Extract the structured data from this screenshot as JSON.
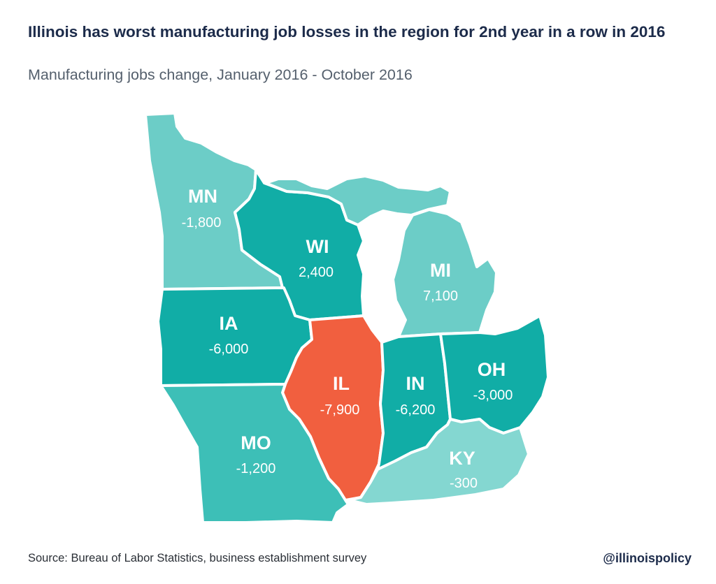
{
  "header": {
    "title": "Illinois has worst manufacturing job losses in the region for 2nd year in a row in 2016",
    "subtitle": "Manufacturing jobs change, January 2016 - October 2016"
  },
  "states": {
    "MN": {
      "abbr": "MN",
      "value": "-1,800",
      "color": "#6ccdc7"
    },
    "WI": {
      "abbr": "WI",
      "value": "2,400",
      "color": "#11ada6"
    },
    "MI": {
      "abbr": "MI",
      "value": "7,100",
      "color": "#6ccdc7"
    },
    "IA": {
      "abbr": "IA",
      "value": "-6,000",
      "color": "#11ada6"
    },
    "IL": {
      "abbr": "IL",
      "value": "-7,900",
      "color": "#f15f3f"
    },
    "IN": {
      "abbr": "IN",
      "value": "-6,200",
      "color": "#11ada6"
    },
    "OH": {
      "abbr": "OH",
      "value": "-3,000",
      "color": "#11ada6"
    },
    "MO": {
      "abbr": "MO",
      "value": "-1,200",
      "color": "#3dbfb7"
    },
    "KY": {
      "abbr": "KY",
      "value": "-300",
      "color": "#84d7d1"
    }
  },
  "footer": {
    "source": "Source: Bureau of Labor Statistics, business establishment survey",
    "handle": "@illinoispolicy"
  }
}
